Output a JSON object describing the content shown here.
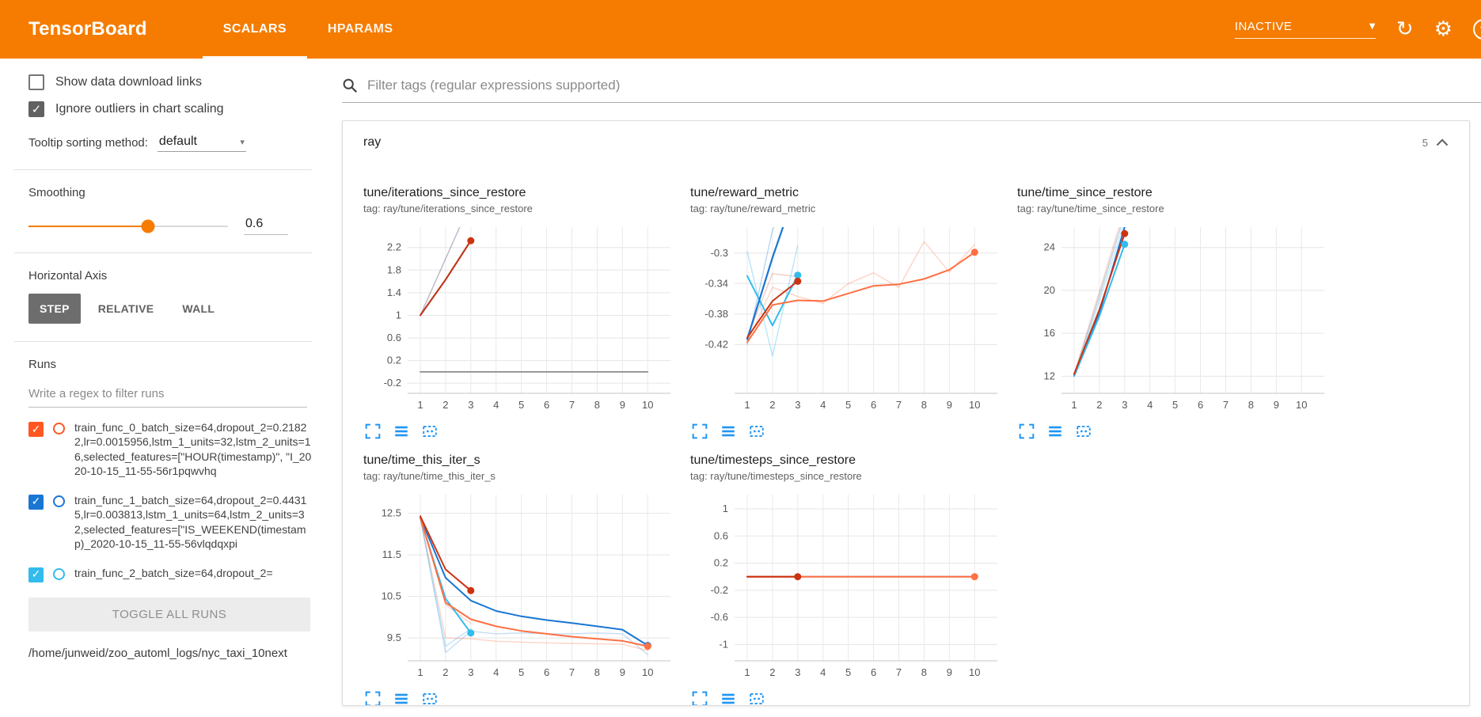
{
  "header": {
    "logo": "TensorBoard",
    "tabs": [
      {
        "label": "SCALARS",
        "active": true
      },
      {
        "label": "HPARAMS",
        "active": false
      }
    ],
    "status_dropdown": "INACTIVE",
    "icons": {
      "reload": "↻",
      "settings": "⚙",
      "help": "?"
    }
  },
  "sidebar": {
    "checkboxes": [
      {
        "label": "Show data download links",
        "checked": false
      },
      {
        "label": "Ignore outliers in chart scaling",
        "checked": true
      }
    ],
    "tooltip_sorting": {
      "label": "Tooltip sorting method:",
      "value": "default"
    },
    "smoothing": {
      "label": "Smoothing",
      "value": "0.6",
      "percent": 60
    },
    "horizontal_axis": {
      "label": "Horizontal Axis",
      "options": [
        {
          "label": "STEP",
          "selected": true
        },
        {
          "label": "RELATIVE",
          "selected": false
        },
        {
          "label": "WALL",
          "selected": false
        }
      ]
    },
    "runs": {
      "label": "Runs",
      "filter_placeholder": "Write a regex to filter runs",
      "items": [
        {
          "label": "train_func_0_batch_size=64,dropout_2=0.21822,lr=0.0015956,lstm_1_units=32,lstm_2_units=16,selected_features=[\"HOUR(timestamp)\", \"I_2020-10-15_11-55-56r1pqwvhq",
          "checked": true,
          "color": "#ff5722"
        },
        {
          "label": "train_func_1_batch_size=64,dropout_2=0.44315,lr=0.003813,lstm_1_units=64,lstm_2_units=32,selected_features=[\"IS_WEEKEND(timestamp)_2020-10-15_11-55-56vlqdqxpi",
          "checked": true,
          "color": "#1976d2"
        },
        {
          "label": "train_func_2_batch_size=64,dropout_2=",
          "checked": true,
          "color": "#33bbee"
        }
      ],
      "toggle_all_label": "TOGGLE ALL RUNS",
      "log_dir": "/home/junweid/zoo_automl_logs/nyc_taxi_10next"
    }
  },
  "main": {
    "filter_placeholder": "Filter tags (regular expressions supported)",
    "section": {
      "title": "ray",
      "count": "5"
    }
  },
  "chart_data": [
    {
      "type": "line",
      "title": "tune/iterations_since_restore",
      "tag": "tag: ray/tune/iterations_since_restore",
      "xticks": [
        1,
        2,
        3,
        4,
        5,
        6,
        7,
        8,
        9,
        10
      ],
      "yticks": [
        -0.2,
        0.2,
        0.6,
        1,
        1.4,
        1.8,
        2.2
      ],
      "xlim": [
        0.5,
        10.9
      ],
      "ylim": [
        -0.38,
        2.56
      ],
      "series": [
        {
          "name": "run red (raw)",
          "color": "#cc3311",
          "opacity": 0.25,
          "width": 1.4,
          "x": [
            1,
            2,
            3
          ],
          "y": [
            1,
            2,
            3
          ]
        },
        {
          "name": "run blue (raw)",
          "color": "#1976d2",
          "opacity": 0.25,
          "width": 1.4,
          "x": [
            1,
            2,
            3
          ],
          "y": [
            1,
            2,
            3
          ]
        },
        {
          "name": "run grey",
          "color": "#8c8c8c",
          "opacity": 1,
          "width": 1.8,
          "x": [
            1,
            10
          ],
          "y": [
            0,
            0
          ]
        },
        {
          "name": "run blue (smoothed)",
          "color": "#1976d2",
          "opacity": 1,
          "width": 2,
          "x": [
            1,
            2,
            3
          ],
          "y": [
            1,
            1.63,
            2.32
          ]
        },
        {
          "name": "run red (smoothed)",
          "color": "#cc3311",
          "opacity": 1,
          "width": 2,
          "x": [
            1,
            2,
            3
          ],
          "y": [
            1,
            1.63,
            2.32
          ]
        }
      ],
      "dots": [
        {
          "x": 3,
          "y": 2.32,
          "color": "#cc3311"
        }
      ]
    },
    {
      "type": "line",
      "title": "tune/reward_metric",
      "tag": "tag: ray/tune/reward_metric",
      "xticks": [
        1,
        2,
        3,
        4,
        5,
        6,
        7,
        8,
        9,
        10
      ],
      "yticks": [
        -0.42,
        -0.38,
        -0.34,
        -0.3
      ],
      "xlim": [
        0.5,
        10.9
      ],
      "ylim": [
        -0.484,
        -0.266
      ],
      "series": [
        {
          "name": "run orange (raw)",
          "color": "#ff7043",
          "opacity": 0.3,
          "width": 1.4,
          "x": [
            1,
            2,
            3,
            4,
            5,
            6,
            7,
            8,
            9,
            10
          ],
          "y": [
            -0.417,
            -0.345,
            -0.357,
            -0.366,
            -0.34,
            -0.326,
            -0.345,
            -0.285,
            -0.325,
            -0.289
          ]
        },
        {
          "name": "run red (raw)",
          "color": "#cc3311",
          "opacity": 0.25,
          "width": 1.4,
          "x": [
            1,
            2,
            3
          ],
          "y": [
            -0.411,
            -0.327,
            -0.331
          ]
        },
        {
          "name": "run cyan (raw)",
          "color": "#33bbee",
          "opacity": 0.35,
          "width": 1.4,
          "x": [
            1,
            2,
            3
          ],
          "y": [
            -0.298,
            -0.435,
            -0.29
          ]
        },
        {
          "name": "run blue (raw)",
          "color": "#1976d2",
          "opacity": 0.3,
          "width": 1.4,
          "x": [
            1,
            2,
            3
          ],
          "y": [
            -0.42,
            -0.27,
            -0.2
          ]
        },
        {
          "name": "run cyan (smoothed)",
          "color": "#33bbee",
          "opacity": 1,
          "width": 2,
          "x": [
            1,
            2,
            3
          ],
          "y": [
            -0.33,
            -0.395,
            -0.329
          ]
        },
        {
          "name": "run blue (smoothed)",
          "color": "#1976d2",
          "opacity": 1,
          "width": 2.2,
          "x": [
            1,
            2,
            3
          ],
          "y": [
            -0.413,
            -0.306,
            -0.21
          ]
        },
        {
          "name": "run orange (smoothed)",
          "color": "#ff7043",
          "opacity": 1,
          "width": 2,
          "x": [
            1,
            2,
            3,
            4,
            5,
            6,
            7,
            8,
            9,
            10
          ],
          "y": [
            -0.417,
            -0.368,
            -0.362,
            -0.363,
            -0.353,
            -0.343,
            -0.341,
            -0.334,
            -0.322,
            -0.299
          ]
        },
        {
          "name": "run red (smoothed)",
          "color": "#cc3311",
          "opacity": 1,
          "width": 2,
          "x": [
            1,
            2,
            3
          ],
          "y": [
            -0.411,
            -0.363,
            -0.337
          ]
        }
      ],
      "dots": [
        {
          "x": 3,
          "y": -0.329,
          "color": "#33bbee"
        },
        {
          "x": 3,
          "y": -0.337,
          "color": "#cc3311"
        },
        {
          "x": 10,
          "y": -0.299,
          "color": "#ff7043"
        }
      ]
    },
    {
      "type": "line",
      "title": "tune/time_since_restore",
      "tag": "tag: ray/tune/time_since_restore",
      "xticks": [
        1,
        2,
        3,
        4,
        5,
        6,
        7,
        8,
        9,
        10
      ],
      "yticks": [
        12,
        16,
        20,
        24
      ],
      "xlim": [
        0.5,
        10.9
      ],
      "ylim": [
        10.4,
        25.9
      ],
      "series": [
        {
          "name": "run red (raw)",
          "color": "#cc3311",
          "opacity": 0.2,
          "width": 1.4,
          "x": [
            1,
            2,
            3
          ],
          "y": [
            12.2,
            19.9,
            27.6
          ]
        },
        {
          "name": "run blue (raw)",
          "color": "#1976d2",
          "opacity": 0.2,
          "width": 1.4,
          "x": [
            1,
            2,
            3
          ],
          "y": [
            12.1,
            19.4,
            27.0
          ]
        },
        {
          "name": "run grey (raw)",
          "color": "#8c8c8c",
          "opacity": 0.25,
          "width": 1.4,
          "x": [
            1,
            2,
            3
          ],
          "y": [
            12.05,
            19.6,
            27.2
          ]
        },
        {
          "name": "run cyan (raw)",
          "color": "#33bbee",
          "opacity": 0.3,
          "width": 1.4,
          "x": [
            1,
            2,
            3
          ],
          "y": [
            12.0,
            19.0,
            26.4
          ]
        },
        {
          "name": "run blue (smoothed)",
          "color": "#1976d2",
          "opacity": 1,
          "width": 2,
          "x": [
            1,
            2,
            3
          ],
          "y": [
            12.1,
            17.9,
            25.9
          ]
        },
        {
          "name": "run cyan (smoothed)",
          "color": "#33bbee",
          "opacity": 1,
          "width": 2,
          "x": [
            1,
            2,
            3
          ],
          "y": [
            12.0,
            17.6,
            24.3
          ]
        },
        {
          "name": "run red (smoothed)",
          "color": "#cc3311",
          "opacity": 1,
          "width": 2,
          "x": [
            1,
            2,
            3
          ],
          "y": [
            12.2,
            18.2,
            25.3
          ]
        }
      ],
      "dots": [
        {
          "x": 3,
          "y": 25.3,
          "color": "#cc3311"
        },
        {
          "x": 3,
          "y": 24.3,
          "color": "#33bbee"
        }
      ]
    },
    {
      "type": "line",
      "title": "tune/time_this_iter_s",
      "tag": "tag: ray/tune/time_this_iter_s",
      "xticks": [
        1,
        2,
        3,
        4,
        5,
        6,
        7,
        8,
        9,
        10
      ],
      "yticks": [
        9.5,
        10.5,
        11.5,
        12.5
      ],
      "xlim": [
        0.5,
        10.9
      ],
      "ylim": [
        8.95,
        12.95
      ],
      "series": [
        {
          "name": "run blue (raw)",
          "color": "#1976d2",
          "opacity": 0.25,
          "width": 1.4,
          "x": [
            1,
            2,
            3,
            4,
            5,
            6,
            7,
            8,
            9,
            10
          ],
          "y": [
            12.4,
            9.15,
            9.66,
            9.6,
            9.62,
            9.6,
            9.6,
            9.62,
            9.6,
            9.1
          ]
        },
        {
          "name": "run cyan (raw)",
          "color": "#33bbee",
          "opacity": 0.35,
          "width": 1.4,
          "x": [
            1,
            2,
            3
          ],
          "y": [
            12.38,
            9.3,
            9.72
          ]
        },
        {
          "name": "run orange (raw)",
          "color": "#ff7043",
          "opacity": 0.3,
          "width": 1.4,
          "x": [
            1,
            2,
            3,
            4,
            5,
            6,
            7,
            8,
            9,
            10
          ],
          "y": [
            12.4,
            9.5,
            9.48,
            9.42,
            9.4,
            9.38,
            9.37,
            9.36,
            9.35,
            9.2
          ]
        },
        {
          "name": "run red (raw)",
          "color": "#cc3311",
          "opacity": 0.2,
          "width": 1.4,
          "x": [
            1,
            2,
            3
          ],
          "y": [
            12.43,
            10.3,
            9.85
          ]
        },
        {
          "name": "run cyan (smoothed)",
          "color": "#33bbee",
          "opacity": 1,
          "width": 2,
          "x": [
            1,
            2,
            3
          ],
          "y": [
            12.38,
            10.45,
            9.62
          ]
        },
        {
          "name": "run blue (smoothed)",
          "color": "#1976d2",
          "opacity": 1,
          "width": 2,
          "x": [
            1,
            2,
            3,
            4,
            5,
            6,
            7,
            8,
            9,
            10
          ],
          "y": [
            12.4,
            10.95,
            10.4,
            10.15,
            10.02,
            9.93,
            9.86,
            9.78,
            9.7,
            9.32
          ]
        },
        {
          "name": "run orange (smoothed)",
          "color": "#ff7043",
          "opacity": 1,
          "width": 2,
          "x": [
            1,
            2,
            3,
            4,
            5,
            6,
            7,
            8,
            9,
            10
          ],
          "y": [
            12.4,
            10.35,
            9.95,
            9.78,
            9.67,
            9.6,
            9.53,
            9.48,
            9.43,
            9.3
          ]
        },
        {
          "name": "run red (smoothed)",
          "color": "#cc3311",
          "opacity": 1,
          "width": 2,
          "x": [
            1,
            2,
            3
          ],
          "y": [
            12.43,
            11.15,
            10.64
          ]
        }
      ],
      "dots": [
        {
          "x": 3,
          "y": 10.64,
          "color": "#cc3311"
        },
        {
          "x": 3,
          "y": 9.62,
          "color": "#33bbee"
        },
        {
          "x": 10,
          "y": 9.32,
          "color": "#1976d2"
        },
        {
          "x": 10,
          "y": 9.3,
          "color": "#ff7043"
        }
      ]
    },
    {
      "type": "line",
      "title": "tune/timesteps_since_restore",
      "tag": "tag: ray/tune/timesteps_since_restore",
      "xticks": [
        1,
        2,
        3,
        4,
        5,
        6,
        7,
        8,
        9,
        10
      ],
      "yticks": [
        -1,
        -0.6,
        -0.2,
        0.2,
        0.6,
        1
      ],
      "xlim": [
        0.5,
        10.9
      ],
      "ylim": [
        -1.24,
        1.21
      ],
      "series": [
        {
          "name": "run grey",
          "color": "#8c8c8c",
          "opacity": 1,
          "width": 1.8,
          "x": [
            1,
            10
          ],
          "y": [
            0,
            0
          ]
        },
        {
          "name": "run orange (smoothed)",
          "color": "#ff7043",
          "opacity": 1,
          "width": 2,
          "x": [
            1,
            10
          ],
          "y": [
            0,
            0
          ]
        },
        {
          "name": "run red (smoothed)",
          "color": "#cc3311",
          "opacity": 1,
          "width": 2,
          "x": [
            1,
            3
          ],
          "y": [
            0,
            0
          ]
        }
      ],
      "dots": [
        {
          "x": 3,
          "y": 0,
          "color": "#cc3311"
        },
        {
          "x": 10,
          "y": 0,
          "color": "#ff7043"
        }
      ]
    }
  ]
}
